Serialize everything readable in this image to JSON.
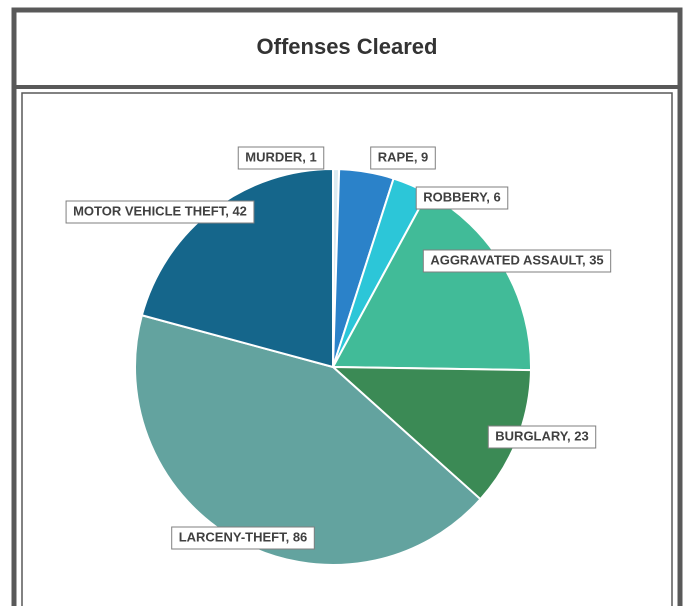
{
  "chart_data": {
    "type": "pie",
    "title": "Offenses Cleared",
    "values": [
      1,
      9,
      6,
      35,
      23,
      86,
      42
    ],
    "value_labels": [
      "MURDER, 1",
      "RAPE, 9",
      "ROBBERY, 6",
      "AGGRAVATED ASSAULT, 35",
      "BURGLARY, 23",
      "LARCENY-THEFT, 86",
      "MOTOR VEHICLE THEFT, 42"
    ],
    "colors": [
      "#dcebf2",
      "#2b82c9",
      "#2cc6d8",
      "#41bb98",
      "#3b8a55",
      "#63a39f",
      "#15668b"
    ]
  }
}
